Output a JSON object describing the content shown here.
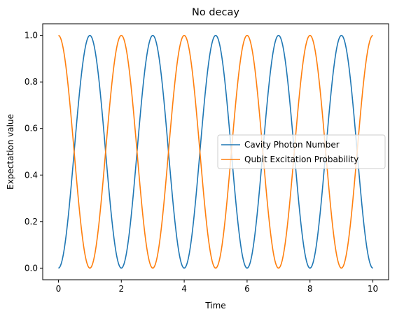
{
  "chart_data": {
    "type": "line",
    "title": "No decay",
    "xlabel": "Time",
    "ylabel": "Expectation value",
    "xlim": [
      -0.5,
      10.5
    ],
    "ylim": [
      -0.05,
      1.05
    ],
    "xticks": [
      0,
      2,
      4,
      6,
      8,
      10
    ],
    "xtick_labels": [
      "0",
      "2",
      "4",
      "6",
      "8",
      "10"
    ],
    "yticks": [
      0.0,
      0.2,
      0.4,
      0.6,
      0.8,
      1.0
    ],
    "ytick_labels": [
      "0.0",
      "0.2",
      "0.4",
      "0.6",
      "0.8",
      "1.0"
    ],
    "grid": false,
    "legend_position": "center-right",
    "x_range": [
      0,
      10
    ],
    "series": [
      {
        "name": "Cavity Photon Number",
        "color": "#1f77b4",
        "function": "sin^2(pi*t/2)",
        "x": [
          0,
          0.5,
          1,
          1.5,
          2,
          2.5,
          3,
          3.5,
          4,
          4.5,
          5,
          5.5,
          6,
          6.5,
          7,
          7.5,
          8,
          8.5,
          9,
          9.5,
          10
        ],
        "values": [
          0,
          0.5,
          1,
          0.5,
          0,
          0.5,
          1,
          0.5,
          0,
          0.5,
          1,
          0.5,
          0,
          0.5,
          1,
          0.5,
          0,
          0.5,
          1,
          0.5,
          0
        ]
      },
      {
        "name": "Qubit Excitation Probability",
        "color": "#ff7f0e",
        "function": "cos^2(pi*t/2)",
        "x": [
          0,
          0.5,
          1,
          1.5,
          2,
          2.5,
          3,
          3.5,
          4,
          4.5,
          5,
          5.5,
          6,
          6.5,
          7,
          7.5,
          8,
          8.5,
          9,
          9.5,
          10
        ],
        "values": [
          1,
          0.5,
          0,
          0.5,
          1,
          0.5,
          0,
          0.5,
          1,
          0.5,
          0,
          0.5,
          1,
          0.5,
          0,
          0.5,
          1,
          0.5,
          0,
          0.5,
          1
        ]
      }
    ]
  }
}
